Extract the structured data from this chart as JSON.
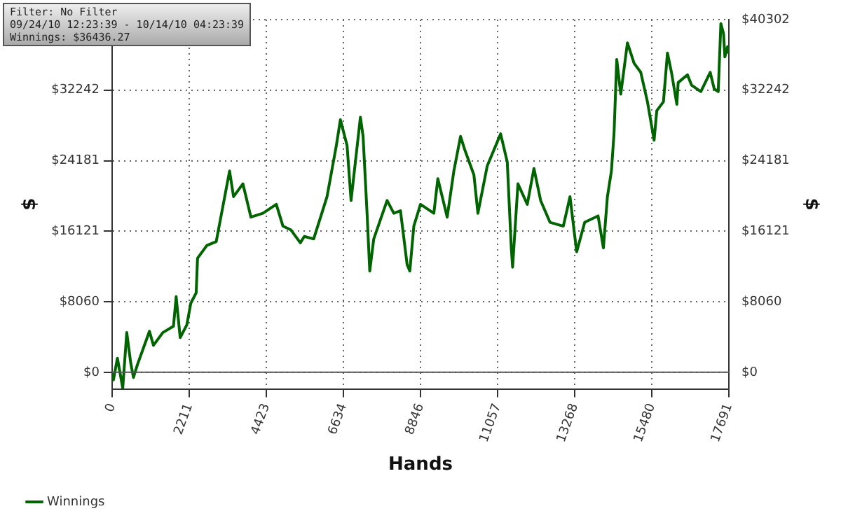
{
  "chart_data": {
    "type": "line",
    "xlabel": "Hands",
    "ylabel": "$",
    "y2label": "$",
    "annotations": [
      "Filter: No Filter",
      "09/24/10 12:23:39 - 10/14/10 04:23:39",
      "Winnings: $36436.27"
    ],
    "xlim": [
      0,
      17691
    ],
    "xticks": [
      0,
      2211,
      4423,
      6634,
      8846,
      11057,
      13268,
      15480,
      17691
    ],
    "ylim": [
      -1900,
      40302
    ],
    "yticks": [
      {
        "value": 0,
        "label": "$0"
      },
      {
        "value": 8060,
        "label": "$8060"
      },
      {
        "value": 16121,
        "label": "$16121"
      },
      {
        "value": 24181,
        "label": "$24181"
      },
      {
        "value": 32242,
        "label": "$32242"
      },
      {
        "value": 40302,
        "label": null
      }
    ],
    "y2lim": [
      -1900,
      40302
    ],
    "y2ticks": [
      {
        "value": 0,
        "label": "$0"
      },
      {
        "value": 8060,
        "label": "$8060"
      },
      {
        "value": 16121,
        "label": "$16121"
      },
      {
        "value": 24181,
        "label": "$24181"
      },
      {
        "value": 32242,
        "label": "$32242"
      },
      {
        "value": 40302,
        "label": "$40302"
      }
    ],
    "ref_lines": [
      {
        "axis": "y",
        "value": 0,
        "color": "#555555"
      }
    ],
    "grid": true,
    "legend": "bottom left",
    "marker": "none",
    "line_style": "solid",
    "series": [
      {
        "name": "Winnings",
        "color": "#006400",
        "x": [
          0,
          38,
          153,
          306,
          421,
          536,
          613,
          728,
          1072,
          1187,
          1455,
          1761,
          1838,
          1953,
          2144,
          2259,
          2412,
          2451,
          2719,
          2987,
          3370,
          3484,
          3752,
          3982,
          4327,
          4710,
          4901,
          5131,
          5399,
          5514,
          5782,
          6050,
          6165,
          6433,
          6548,
          6739,
          6854,
          7122,
          7199,
          7313,
          7390,
          7505,
          7696,
          7888,
          8079,
          8271,
          8462,
          8539,
          8654,
          8845,
          9228,
          9343,
          9611,
          9802,
          9994,
          10109,
          10377,
          10492,
          10760,
          11143,
          11334,
          11449,
          11487,
          11640,
          11908,
          12099,
          12291,
          12559,
          12942,
          13133,
          13248,
          13325,
          13555,
          13938,
          14091,
          14206,
          14321,
          14397,
          14474,
          14589,
          14780,
          14971,
          15162,
          15354,
          15545,
          15622,
          15813,
          15928,
          16043,
          16197,
          16235,
          16503,
          16618,
          16886,
          17154,
          17269,
          17384,
          17460,
          17537,
          17575,
          17652,
          17691
        ],
        "values": [
          0,
          -880,
          1610,
          -1800,
          4540,
          1030,
          -590,
          880,
          4690,
          3080,
          4540,
          5270,
          8640,
          3960,
          5420,
          7910,
          9080,
          13040,
          14500,
          14940,
          23000,
          20070,
          21540,
          17730,
          18170,
          19190,
          16700,
          16260,
          14800,
          15530,
          15240,
          18610,
          20070,
          25930,
          28860,
          25930,
          19630,
          29150,
          26960,
          18170,
          11570,
          15240,
          17430,
          19630,
          18170,
          18460,
          12310,
          11570,
          16700,
          19190,
          18170,
          22120,
          17730,
          23000,
          26960,
          25490,
          22560,
          18170,
          23590,
          27250,
          24030,
          14210,
          12010,
          21540,
          19190,
          23290,
          19630,
          17140,
          16700,
          20070,
          16260,
          13770,
          17140,
          17870,
          14210,
          20070,
          23000,
          27400,
          35750,
          31790,
          37650,
          35310,
          34280,
          30910,
          26520,
          29890,
          30910,
          36480,
          34280,
          30620,
          33110,
          33990,
          32820,
          32080,
          34280,
          32380,
          32080,
          39850,
          38680,
          36040,
          37210,
          36436
        ]
      }
    ]
  }
}
